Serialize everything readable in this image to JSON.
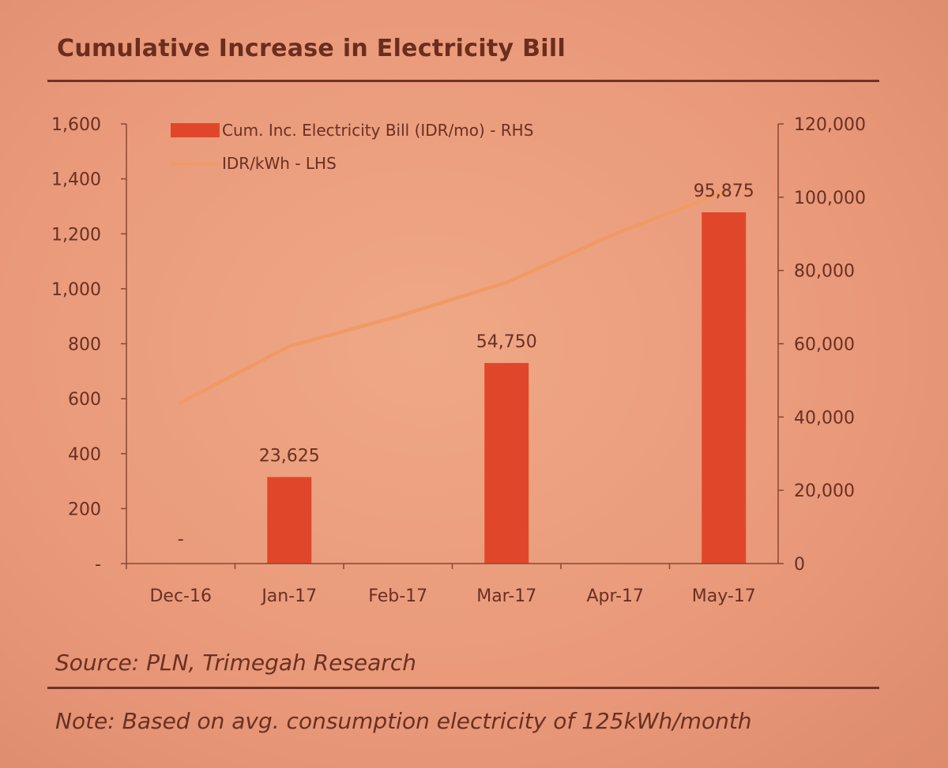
{
  "title": "Cumulative Increase in Electricity Bill",
  "source": "Source: PLN, Trimegah Research",
  "note": "Note: Based on avg. consumption electricity of 125kWh/month",
  "chart_data": {
    "type": "bar+line",
    "categories": [
      "Dec-16",
      "Jan-17",
      "Feb-17",
      "Mar-17",
      "Apr-17",
      "May-17"
    ],
    "series": [
      {
        "name": "Cum. Inc. Electricity Bill (IDR/mo) - RHS",
        "type": "bar",
        "axis": "right",
        "values": [
          0,
          23625,
          0,
          54750,
          0,
          95875
        ],
        "labels": [
          "-",
          "23,625",
          "",
          "54,750",
          "",
          "95,875"
        ],
        "color": "#e0472a"
      },
      {
        "name": "IDR/kWh - LHS",
        "type": "line",
        "axis": "left",
        "values": [
          586,
          791,
          900,
          1023,
          1200,
          1352
        ],
        "color": "#f09a64"
      }
    ],
    "left_axis": {
      "ylim": [
        0,
        1600
      ],
      "ticks": [
        "-",
        "200",
        "400",
        "600",
        "800",
        "1,000",
        "1,200",
        "1,400",
        "1,600"
      ]
    },
    "right_axis": {
      "ylim": [
        0,
        120000
      ],
      "ticks": [
        "0",
        "20,000",
        "40,000",
        "60,000",
        "80,000",
        "100,000",
        "120,000"
      ]
    },
    "legend_position": "top-left"
  }
}
